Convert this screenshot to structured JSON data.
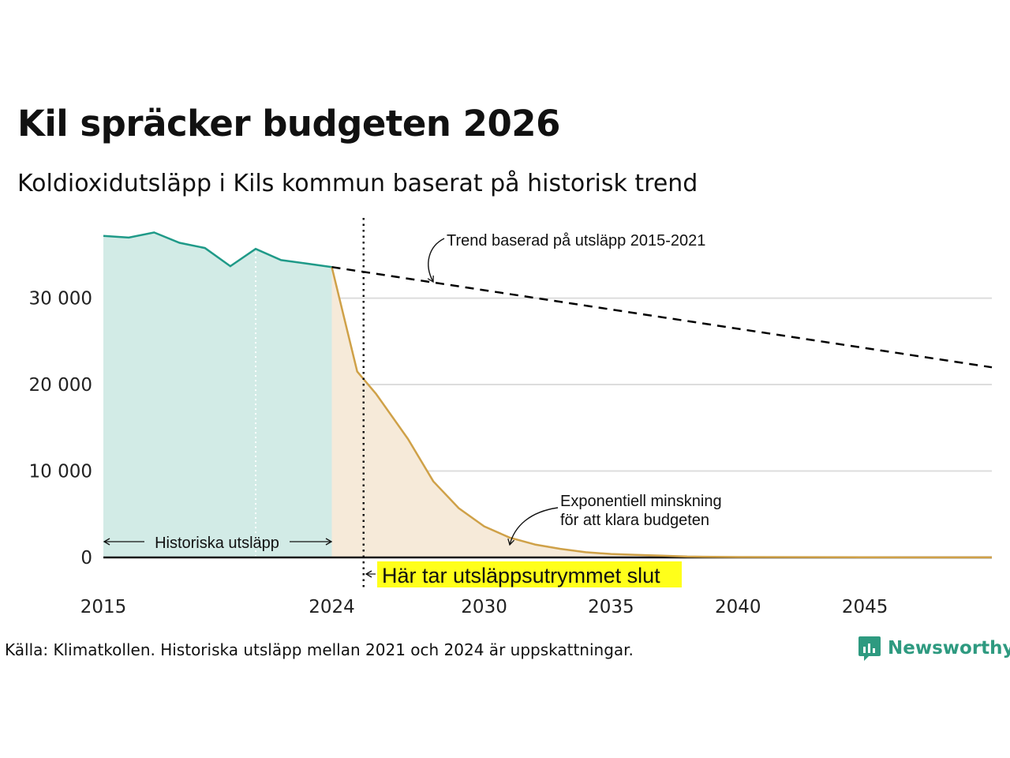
{
  "title": "Kil spräcker budgeten 2026",
  "subtitle": "Koldioxidutsläpp i Kils kommun baserat på historisk trend",
  "source": "Källa: Klimatkollen. Historiska utsläpp mellan 2021 och 2024 är uppskattningar.",
  "brand": "Newsworthy",
  "colors": {
    "historical_line": "#1f9a88",
    "historical_fill": "#d2ebe6",
    "reduction_line": "#cfa148",
    "reduction_fill": "#f6ead9",
    "trend_line": "#000000",
    "highlight": "#ffff1a",
    "grid": "#dddddd",
    "brand": "#2e9a80"
  },
  "chart_data": {
    "type": "area",
    "xlim": [
      2015,
      2050
    ],
    "ylim": [
      0,
      38000
    ],
    "x_ticks": [
      {
        "value": 2015,
        "label": "2015"
      },
      {
        "value": 2024,
        "label": "2024"
      },
      {
        "value": 2030,
        "label": "2030"
      },
      {
        "value": 2035,
        "label": "2035"
      },
      {
        "value": 2040,
        "label": "2040"
      },
      {
        "value": 2045,
        "label": "2045"
      }
    ],
    "y_ticks": [
      {
        "value": 0,
        "label": "0"
      },
      {
        "value": 10000,
        "label": "10 000"
      },
      {
        "value": 20000,
        "label": "20 000"
      },
      {
        "value": 30000,
        "label": "30 000"
      }
    ],
    "grid": true,
    "series": [
      {
        "key": "historical",
        "x": [
          2015,
          2016,
          2017,
          2018,
          2019,
          2020,
          2021,
          2022,
          2023,
          2024
        ],
        "y": [
          37200,
          37000,
          37600,
          36400,
          35800,
          33700,
          35700,
          34400,
          34000,
          33600
        ]
      },
      {
        "key": "reduction",
        "x": [
          2024,
          2025,
          2025.75,
          2027,
          2028,
          2029,
          2030,
          2031,
          2032,
          2033,
          2034,
          2035,
          2036,
          2037,
          2038,
          2040,
          2045,
          2050
        ],
        "y": [
          33600,
          21500,
          18900,
          13700,
          8800,
          5700,
          3600,
          2300,
          1500,
          1000,
          600,
          400,
          300,
          200,
          100,
          50,
          20,
          10
        ]
      },
      {
        "key": "trend",
        "x": [
          2024,
          2050
        ],
        "y": [
          33600,
          22000
        ]
      }
    ],
    "markers": {
      "budget_end_x": 2025.25,
      "covid_year_x": 2021
    },
    "annotations": {
      "trend": "Trend baserad på utsläpp 2015-2021",
      "exponential_line1": "Exponentiell minskning",
      "exponential_line2": "för att klara budgeten",
      "historical": "Historiska utsläpp",
      "budget_end": "Här tar utsläppsutrymmet slut"
    }
  }
}
